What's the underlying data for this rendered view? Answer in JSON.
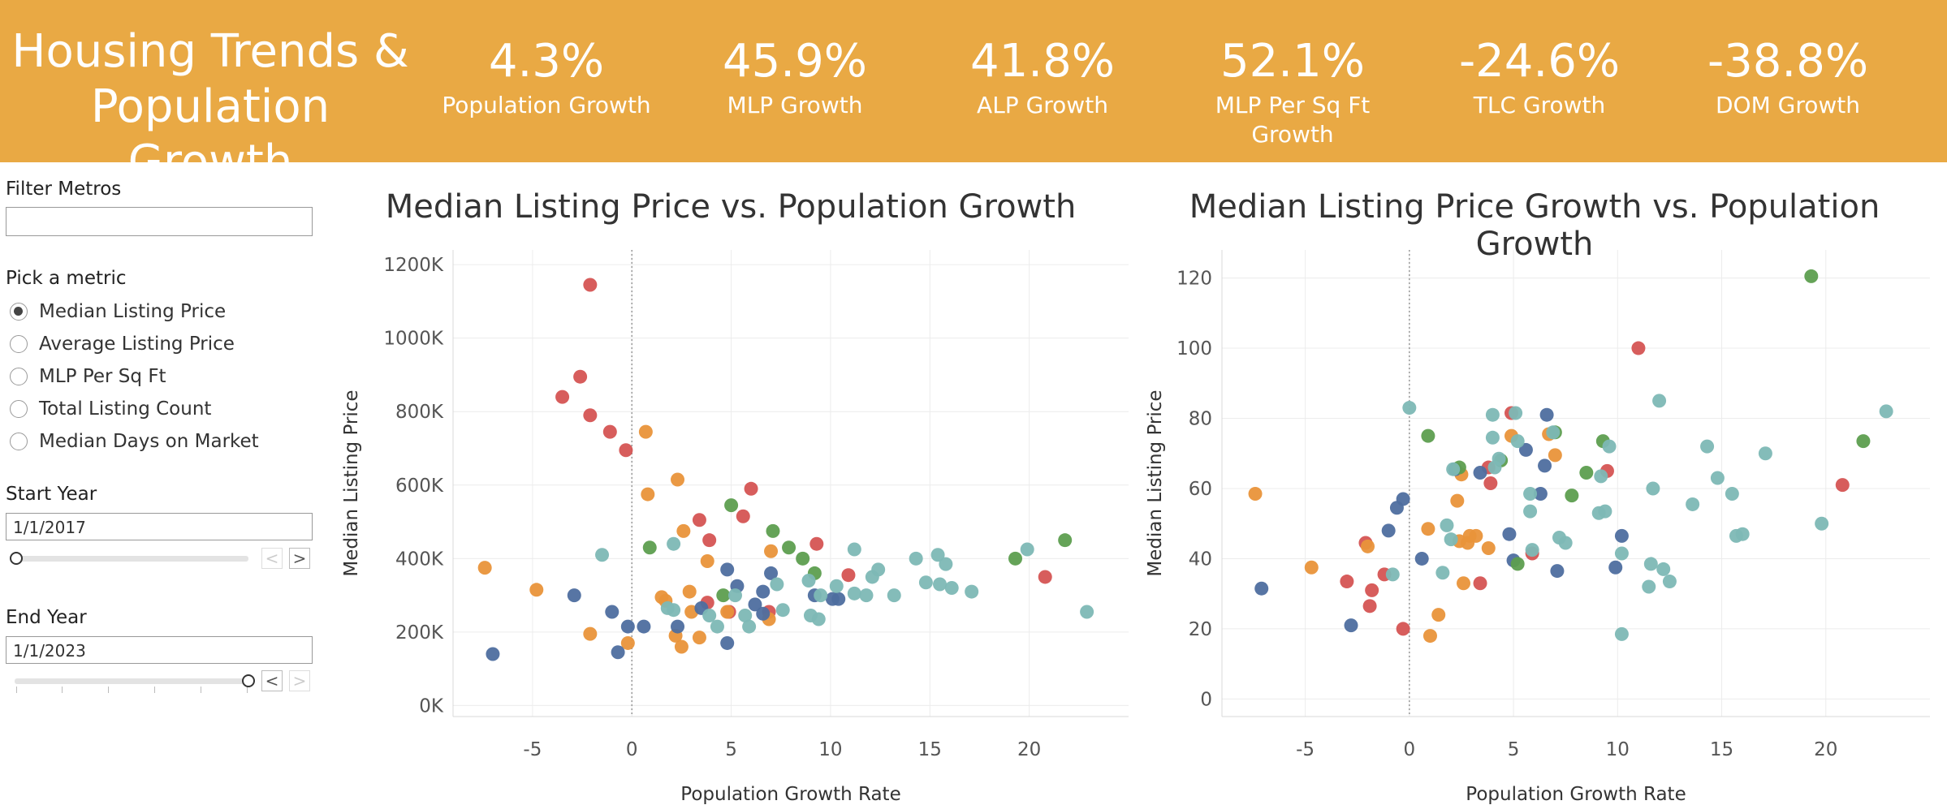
{
  "header": {
    "title_line1": "Housing Trends &",
    "title_line2": "Population Growth",
    "kpis": [
      {
        "value": "4.3%",
        "label": "Population Growth"
      },
      {
        "value": "45.9%",
        "label": "MLP Growth"
      },
      {
        "value": "41.8%",
        "label": "ALP Growth"
      },
      {
        "value": "52.1%",
        "label": "MLP Per Sq Ft Growth"
      },
      {
        "value": "-24.6%",
        "label": "TLC Growth"
      },
      {
        "value": "-38.8%",
        "label": "DOM Growth"
      }
    ]
  },
  "sidebar": {
    "filter_label": "Filter Metros",
    "filter_value": "",
    "metric_label": "Pick a metric",
    "metrics": [
      "Median Listing Price",
      "Average Listing Price",
      "MLP Per Sq Ft",
      "Total Listing Count",
      "Median Days on Market"
    ],
    "selected_metric_index": 0,
    "start_label": "Start Year",
    "start_value": "1/1/2017",
    "start_slider_position": 0,
    "end_label": "End Year",
    "end_value": "1/1/2023",
    "end_slider_position": 1,
    "prev_arrow": "<",
    "next_arrow": ">"
  },
  "colors": {
    "header_bg": "#e9a944",
    "blue": "#4e6e9f",
    "orange": "#e9933a",
    "red": "#d55453",
    "green": "#5d9e4f",
    "teal": "#7db8b5"
  },
  "chart_data": [
    {
      "type": "scatter",
      "title": "Median Listing Price vs. Population Growth",
      "xlabel": "Population Growth Rate",
      "ylabel": "Median Listing Price",
      "xlim": [
        -9,
        25
      ],
      "ylim": [
        -30000,
        1240000
      ],
      "xticks": [
        -5,
        0,
        5,
        10,
        15,
        20
      ],
      "yticks": [
        0,
        200000,
        400000,
        600000,
        800000,
        1000000,
        1200000
      ],
      "ytick_labels": [
        "0K",
        "200K",
        "400K",
        "600K",
        "800K",
        "1000K",
        "1200K"
      ],
      "grid": true,
      "zero_line": true,
      "series": [
        {
          "color": "red",
          "points": [
            [
              -2.1,
              1145000
            ],
            [
              -2.6,
              895000
            ],
            [
              -3.5,
              840000
            ],
            [
              -2.1,
              790000
            ],
            [
              -1.1,
              745000
            ],
            [
              -0.3,
              695000
            ],
            [
              6.0,
              590000
            ],
            [
              5.6,
              515000
            ],
            [
              3.4,
              505000
            ],
            [
              3.9,
              450000
            ],
            [
              9.3,
              440000
            ],
            [
              10.9,
              355000
            ],
            [
              20.8,
              350000
            ],
            [
              3.8,
              280000
            ],
            [
              4.9,
              255000
            ],
            [
              6.9,
              255000
            ]
          ]
        },
        {
          "color": "orange",
          "points": [
            [
              -7.4,
              375000
            ],
            [
              -4.8,
              315000
            ],
            [
              -2.1,
              195000
            ],
            [
              0.7,
              745000
            ],
            [
              0.8,
              575000
            ],
            [
              2.3,
              615000
            ],
            [
              2.6,
              475000
            ],
            [
              3.8,
              393000
            ],
            [
              1.5,
              295000
            ],
            [
              2.9,
              310000
            ],
            [
              1.7,
              285000
            ],
            [
              3.0,
              255000
            ],
            [
              2.2,
              190000
            ],
            [
              3.4,
              185000
            ],
            [
              2.5,
              160000
            ],
            [
              -0.2,
              170000
            ],
            [
              4.8,
              255000
            ],
            [
              6.9,
              235000
            ],
            [
              7.0,
              420000
            ]
          ]
        },
        {
          "color": "blue",
          "points": [
            [
              -7.0,
              140000
            ],
            [
              -2.9,
              300000
            ],
            [
              -1.0,
              255000
            ],
            [
              -0.7,
              145000
            ],
            [
              -0.2,
              215000
            ],
            [
              0.6,
              215000
            ],
            [
              2.3,
              215000
            ],
            [
              3.5,
              265000
            ],
            [
              4.8,
              370000
            ],
            [
              5.3,
              325000
            ],
            [
              6.2,
              275000
            ],
            [
              6.6,
              310000
            ],
            [
              7.0,
              360000
            ],
            [
              6.6,
              250000
            ],
            [
              9.2,
              300000
            ],
            [
              10.1,
              290000
            ],
            [
              10.4,
              290000
            ],
            [
              4.8,
              170000
            ]
          ]
        },
        {
          "color": "green",
          "points": [
            [
              0.9,
              430000
            ],
            [
              5.0,
              545000
            ],
            [
              7.1,
              475000
            ],
            [
              7.9,
              430000
            ],
            [
              8.6,
              400000
            ],
            [
              9.2,
              360000
            ],
            [
              4.6,
              300000
            ],
            [
              19.3,
              400000
            ],
            [
              21.8,
              450000
            ]
          ]
        },
        {
          "color": "teal",
          "points": [
            [
              -1.5,
              410000
            ],
            [
              2.1,
              440000
            ],
            [
              1.8,
              265000
            ],
            [
              2.1,
              260000
            ],
            [
              3.9,
              245000
            ],
            [
              4.3,
              215000
            ],
            [
              5.2,
              300000
            ],
            [
              5.7,
              245000
            ],
            [
              5.9,
              215000
            ],
            [
              7.3,
              330000
            ],
            [
              7.6,
              260000
            ],
            [
              8.9,
              340000
            ],
            [
              9.0,
              245000
            ],
            [
              9.4,
              235000
            ],
            [
              9.5,
              300000
            ],
            [
              10.3,
              325000
            ],
            [
              11.2,
              425000
            ],
            [
              11.2,
              305000
            ],
            [
              11.8,
              300000
            ],
            [
              12.1,
              350000
            ],
            [
              12.4,
              370000
            ],
            [
              13.2,
              300000
            ],
            [
              14.3,
              400000
            ],
            [
              14.8,
              335000
            ],
            [
              15.5,
              330000
            ],
            [
              15.4,
              410000
            ],
            [
              15.8,
              385000
            ],
            [
              16.1,
              320000
            ],
            [
              17.1,
              310000
            ],
            [
              19.9,
              425000
            ],
            [
              22.9,
              255000
            ]
          ]
        }
      ]
    },
    {
      "type": "scatter",
      "title": "Median Listing Price Growth vs. Population Growth",
      "xlabel": "Population Growth Rate",
      "ylabel": "Median Listing Price",
      "xlim": [
        -9,
        25
      ],
      "ylim": [
        -5,
        128
      ],
      "xticks": [
        -5,
        0,
        5,
        10,
        15,
        20
      ],
      "yticks": [
        0,
        20,
        40,
        60,
        80,
        100,
        120
      ],
      "grid": true,
      "zero_line": true,
      "series": [
        {
          "color": "red",
          "points": [
            [
              11.0,
              100
            ],
            [
              20.8,
              61
            ],
            [
              4.9,
              81.5
            ],
            [
              9.5,
              65
            ],
            [
              3.8,
              66
            ],
            [
              3.9,
              61.5
            ],
            [
              5.9,
              41.5
            ],
            [
              3.4,
              33
            ],
            [
              -1.8,
              31
            ],
            [
              -3.0,
              33.5
            ],
            [
              -1.9,
              26.5
            ],
            [
              -1.2,
              35.5
            ],
            [
              -0.3,
              20
            ],
            [
              -2.1,
              44.5
            ]
          ]
        },
        {
          "color": "orange",
          "points": [
            [
              -7.4,
              58.5
            ],
            [
              -4.7,
              37.5
            ],
            [
              -2.0,
              43.5
            ],
            [
              1.0,
              18
            ],
            [
              1.4,
              24
            ],
            [
              0.9,
              48.5
            ],
            [
              2.3,
              56.5
            ],
            [
              2.5,
              64
            ],
            [
              2.4,
              45
            ],
            [
              2.8,
              44.5
            ],
            [
              2.9,
              46.5
            ],
            [
              3.2,
              46.5
            ],
            [
              3.8,
              43
            ],
            [
              2.6,
              33
            ],
            [
              4.9,
              75
            ],
            [
              6.7,
              75.5
            ],
            [
              7.0,
              69.5
            ]
          ]
        },
        {
          "color": "blue",
          "points": [
            [
              -7.1,
              31.5
            ],
            [
              -2.8,
              21
            ],
            [
              -1.0,
              48
            ],
            [
              -0.6,
              54.5
            ],
            [
              -0.3,
              57
            ],
            [
              0.6,
              40
            ],
            [
              2.2,
              65.5
            ],
            [
              3.4,
              64.5
            ],
            [
              4.8,
              47
            ],
            [
              5.0,
              39.5
            ],
            [
              5.6,
              71
            ],
            [
              6.3,
              58.5
            ],
            [
              6.5,
              66.5
            ],
            [
              6.6,
              81
            ],
            [
              7.1,
              36.5
            ],
            [
              9.9,
              37.5
            ],
            [
              10.2,
              46.5
            ]
          ]
        },
        {
          "color": "green",
          "points": [
            [
              19.3,
              120.5
            ],
            [
              21.8,
              73.5
            ],
            [
              0.9,
              75
            ],
            [
              2.4,
              66
            ],
            [
              4.4,
              68
            ],
            [
              7.0,
              76
            ],
            [
              7.8,
              58
            ],
            [
              8.5,
              64.5
            ],
            [
              9.3,
              73.5
            ],
            [
              5.2,
              38.5
            ]
          ]
        },
        {
          "color": "teal",
          "points": [
            [
              0.0,
              83
            ],
            [
              12.0,
              85
            ],
            [
              5.1,
              81.5
            ],
            [
              4.0,
              81
            ],
            [
              22.9,
              82
            ],
            [
              6.9,
              76
            ],
            [
              9.6,
              72
            ],
            [
              14.3,
              72
            ],
            [
              17.1,
              70
            ],
            [
              5.2,
              73.5
            ],
            [
              4.0,
              74.5
            ],
            [
              1.8,
              49.5
            ],
            [
              1.6,
              36
            ],
            [
              2.0,
              45.5
            ],
            [
              2.1,
              65.5
            ],
            [
              4.3,
              68.5
            ],
            [
              4.1,
              66
            ],
            [
              5.8,
              58.5
            ],
            [
              5.8,
              53.5
            ],
            [
              5.9,
              42.5
            ],
            [
              7.2,
              46
            ],
            [
              7.5,
              44.5
            ],
            [
              9.1,
              53
            ],
            [
              9.4,
              53.5
            ],
            [
              9.2,
              63.5
            ],
            [
              10.2,
              41.5
            ],
            [
              10.2,
              18.5
            ],
            [
              11.5,
              32
            ],
            [
              11.6,
              38.5
            ],
            [
              11.7,
              60
            ],
            [
              12.2,
              37
            ],
            [
              12.5,
              33.5
            ],
            [
              13.6,
              55.5
            ],
            [
              14.8,
              63
            ],
            [
              15.5,
              58.5
            ],
            [
              15.7,
              46.5
            ],
            [
              16.0,
              47
            ],
            [
              19.8,
              50
            ],
            [
              -0.8,
              35.5
            ]
          ]
        }
      ]
    }
  ]
}
